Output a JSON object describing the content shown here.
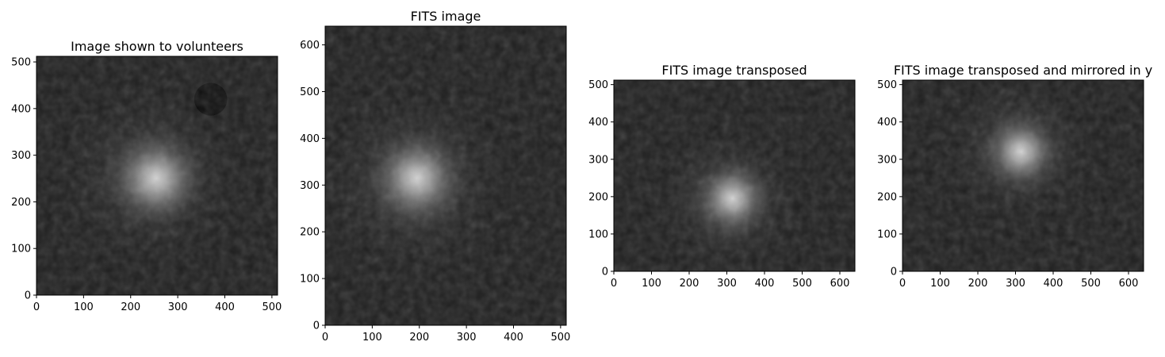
{
  "figure": {
    "colormap": "gray",
    "background": "#ffffff",
    "text_color": "#000000"
  },
  "chart_data": [
    {
      "type": "heatmap",
      "title": "Image shown to volunteers",
      "xlabel": "",
      "ylabel": "",
      "xlim": [
        0,
        512
      ],
      "ylim": [
        0,
        512
      ],
      "xticks": [
        0,
        100,
        200,
        300,
        400,
        500
      ],
      "yticks": [
        0,
        100,
        200,
        300,
        400,
        500
      ],
      "grid": false,
      "features": [
        {
          "kind": "bright-core",
          "x": 255,
          "y": 250,
          "peak": 0.95,
          "sigma": 55
        },
        {
          "kind": "halo",
          "x": 240,
          "y": 255,
          "peak": 0.35,
          "sigma": 95
        },
        {
          "kind": "dark-blob",
          "x": 370,
          "y": 420,
          "radius": 35
        }
      ]
    },
    {
      "type": "heatmap",
      "title": "FITS image",
      "xlabel": "",
      "ylabel": "",
      "xlim": [
        0,
        512
      ],
      "ylim": [
        0,
        640
      ],
      "xticks": [
        0,
        100,
        200,
        300,
        400,
        500
      ],
      "yticks": [
        0,
        100,
        200,
        300,
        400,
        500,
        600
      ],
      "grid": false,
      "features": [
        {
          "kind": "bright-core",
          "x": 195,
          "y": 315,
          "peak": 0.95,
          "sigma": 55
        },
        {
          "kind": "halo",
          "x": 190,
          "y": 305,
          "peak": 0.35,
          "sigma": 100
        }
      ]
    },
    {
      "type": "heatmap",
      "title": "FITS image transposed",
      "xlabel": "",
      "ylabel": "",
      "xlim": [
        0,
        640
      ],
      "ylim": [
        0,
        512
      ],
      "xticks": [
        0,
        100,
        200,
        300,
        400,
        500,
        600
      ],
      "yticks": [
        0,
        100,
        200,
        300,
        400,
        500
      ],
      "grid": false,
      "features": [
        {
          "kind": "bright-core",
          "x": 315,
          "y": 195,
          "peak": 0.95,
          "sigma": 55
        },
        {
          "kind": "halo",
          "x": 305,
          "y": 190,
          "peak": 0.35,
          "sigma": 100
        }
      ]
    },
    {
      "type": "heatmap",
      "title": "FITS image transposed and mirrored in y",
      "xlabel": "",
      "ylabel": "",
      "xlim": [
        0,
        640
      ],
      "ylim": [
        0,
        512
      ],
      "xticks": [
        0,
        100,
        200,
        300,
        400,
        500,
        600
      ],
      "yticks": [
        0,
        100,
        200,
        300,
        400,
        500
      ],
      "grid": false,
      "features": [
        {
          "kind": "bright-core",
          "x": 315,
          "y": 320,
          "peak": 0.95,
          "sigma": 55
        },
        {
          "kind": "halo",
          "x": 305,
          "y": 325,
          "peak": 0.35,
          "sigma": 100
        }
      ]
    }
  ]
}
